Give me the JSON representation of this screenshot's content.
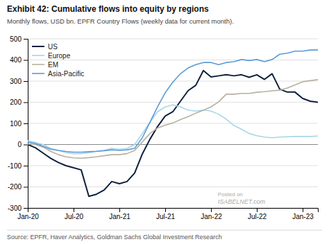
{
  "chart_data": {
    "type": "line",
    "title": "Exhibit 42: Cumulative flows into equity by regions",
    "subtitle": "Monthly flows, USD bn. EPFR Country Flows (weekly data for current month).",
    "annotations": [
      "Source: EPFR, Haver Analytics, Goldman Sachs Global Investment Research",
      "Posted on",
      "ISABELNET.com"
    ],
    "categories": [
      "Jan-20",
      null,
      null,
      null,
      null,
      null,
      "Jul-20",
      null,
      null,
      null,
      null,
      null,
      "Jan-21",
      null,
      null,
      null,
      null,
      null,
      "Jul-21",
      null,
      null,
      null,
      null,
      null,
      "Jan-22",
      null,
      null,
      null,
      null,
      null,
      "Jul-22",
      null,
      null,
      null,
      null,
      null,
      "Jan-23",
      null,
      null
    ],
    "series": [
      {
        "name": "US",
        "color": "#0d1f3c",
        "values": [
          0,
          -15,
          -40,
          -65,
          -85,
          -100,
          -110,
          -120,
          -245,
          -235,
          -215,
          -175,
          -185,
          -175,
          -135,
          -45,
          25,
          85,
          135,
          155,
          205,
          255,
          280,
          350,
          320,
          325,
          330,
          325,
          330,
          318,
          330,
          308,
          335,
          262,
          248,
          248,
          218,
          205,
          200
        ]
      },
      {
        "name": "Europe",
        "color": "#aad4e8",
        "values": [
          18,
          10,
          0,
          -18,
          -28,
          -38,
          -43,
          -43,
          -38,
          -33,
          -28,
          -18,
          -22,
          -18,
          0,
          52,
          105,
          155,
          178,
          188,
          178,
          163,
          158,
          163,
          158,
          143,
          120,
          90,
          72,
          52,
          42,
          35,
          32,
          35,
          37,
          38,
          38,
          38,
          40
        ]
      },
      {
        "name": "EM",
        "color": "#b8b0a0",
        "values": [
          3,
          0,
          -12,
          -32,
          -48,
          -58,
          -63,
          -65,
          -62,
          -58,
          -53,
          -48,
          -48,
          -43,
          -28,
          12,
          52,
          78,
          92,
          102,
          118,
          132,
          148,
          162,
          178,
          202,
          238,
          238,
          242,
          242,
          247,
          250,
          254,
          257,
          267,
          282,
          297,
          302,
          307
        ]
      },
      {
        "name": "Asia-Pacific",
        "color": "#5b9bd5",
        "values": [
          12,
          5,
          -8,
          -22,
          -28,
          -33,
          -36,
          -36,
          -34,
          -32,
          -29,
          -25,
          -28,
          -25,
          -18,
          32,
          105,
          178,
          245,
          295,
          335,
          362,
          378,
          388,
          388,
          378,
          388,
          392,
          402,
          397,
          402,
          392,
          402,
          427,
          432,
          442,
          442,
          447,
          447
        ]
      }
    ],
    "ylim": [
      -300,
      500
    ],
    "yticks": [
      -300,
      -200,
      -100,
      0,
      100,
      200,
      300,
      400,
      500
    ],
    "grid": true,
    "legend": "upper left"
  }
}
